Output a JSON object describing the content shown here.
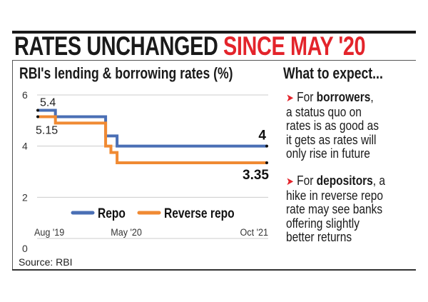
{
  "headline": {
    "part1": "RATES UNCHANGED",
    "part2": "SINCE MAY '20"
  },
  "colors": {
    "repo": "#4a6fb5",
    "reverse_repo": "#f08a33",
    "accent": "#e3242b"
  },
  "expect": {
    "title": "What to expect...",
    "points": [
      {
        "prefix": "For ",
        "bold": "borrowers",
        "lead_rest": ",",
        "lines": [
          "a status quo on",
          "rates is as good as",
          "it gets as rates will",
          "only rise in future"
        ]
      },
      {
        "prefix": "For ",
        "bold": "depositors",
        "lead_rest": ", a",
        "lines": [
          "hike in reverse repo",
          "rate may see banks",
          "offering slightly",
          "better returns"
        ]
      }
    ]
  },
  "chart_data": {
    "type": "line",
    "step": true,
    "title": "RBI's lending & borrowing rates (%)",
    "source": "Source: RBI",
    "x_unit": "months since Aug 2019",
    "x_range": [
      0,
      26
    ],
    "x_ticks": [
      {
        "x": 0,
        "label": "Aug '19"
      },
      {
        "x": 9,
        "label": "May '20"
      },
      {
        "x": 26,
        "label": "Oct '21"
      }
    ],
    "ylim": [
      0,
      6
    ],
    "y_ticks": [
      0,
      2,
      4,
      6
    ],
    "grid": true,
    "legend_position": "bottom-center",
    "series": [
      {
        "name": "Repo",
        "color": "#4a6fb5",
        "points": [
          [
            0,
            5.4
          ],
          [
            2,
            5.15
          ],
          [
            7.7,
            4.4
          ],
          [
            9,
            4.0
          ],
          [
            26,
            4.0
          ]
        ],
        "start_label": "5.4",
        "end_label": "4"
      },
      {
        "name": "Reverse repo",
        "color": "#f08a33",
        "points": [
          [
            0,
            5.15
          ],
          [
            2,
            4.9
          ],
          [
            7.7,
            4.0
          ],
          [
            8.3,
            3.75
          ],
          [
            9,
            3.35
          ],
          [
            26,
            3.35
          ]
        ],
        "start_label": "5.15",
        "end_label": "3.35"
      }
    ]
  }
}
